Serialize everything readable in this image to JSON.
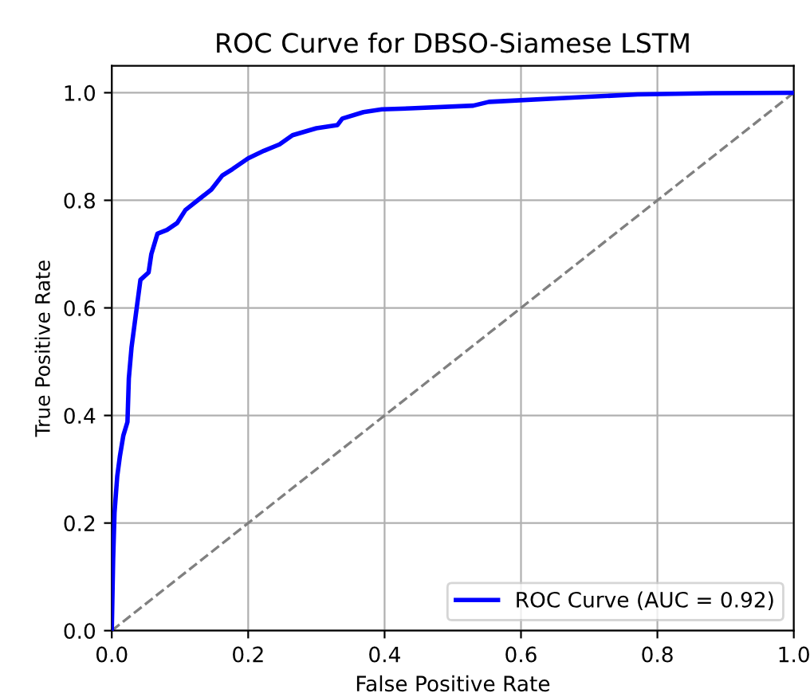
{
  "chart_data": {
    "type": "line",
    "title": "ROC Curve for DBSO-Siamese LSTM",
    "xlabel": "False Positive Rate",
    "ylabel": "True Positive Rate",
    "xlim": [
      0,
      1
    ],
    "ylim": [
      0,
      1.05
    ],
    "xticks": [
      {
        "value": 0,
        "label": "0.0"
      },
      0.2,
      0.4,
      0.6,
      0.8,
      {
        "value": 1,
        "label": "1.0"
      }
    ],
    "yticks": [
      {
        "value": 0,
        "label": "0.0"
      },
      0.2,
      0.4,
      0.6,
      0.8,
      {
        "value": 1,
        "label": "1.0"
      }
    ],
    "grid": true,
    "legend": "lower right",
    "series": [
      {
        "name": "ROC Curve (AUC = 0.92)",
        "color": "#0000ff",
        "line_style": "solid",
        "x": [
          0,
          0.002,
          0.004,
          0.008,
          0.012,
          0.017,
          0.023,
          0.025,
          0.029,
          0.035,
          0.042,
          0.054,
          0.058,
          0.067,
          0.081,
          0.096,
          0.108,
          0.127,
          0.146,
          0.162,
          0.177,
          0.2,
          0.223,
          0.246,
          0.265,
          0.3,
          0.331,
          0.338,
          0.369,
          0.396,
          0.438,
          0.53,
          0.553,
          0.693,
          0.771,
          0.88,
          1
        ],
        "values": [
          0,
          0.133,
          0.219,
          0.287,
          0.325,
          0.363,
          0.388,
          0.469,
          0.527,
          0.585,
          0.652,
          0.666,
          0.7,
          0.738,
          0.745,
          0.758,
          0.782,
          0.801,
          0.82,
          0.846,
          0.858,
          0.878,
          0.892,
          0.904,
          0.921,
          0.934,
          0.94,
          0.952,
          0.964,
          0.969,
          0.971,
          0.976,
          0.983,
          0.992,
          0.997,
          0.999,
          1
        ]
      },
      {
        "color": "#808080",
        "line_style": "dashed",
        "x": [
          0,
          1
        ],
        "values": [
          0,
          1
        ]
      }
    ]
  }
}
